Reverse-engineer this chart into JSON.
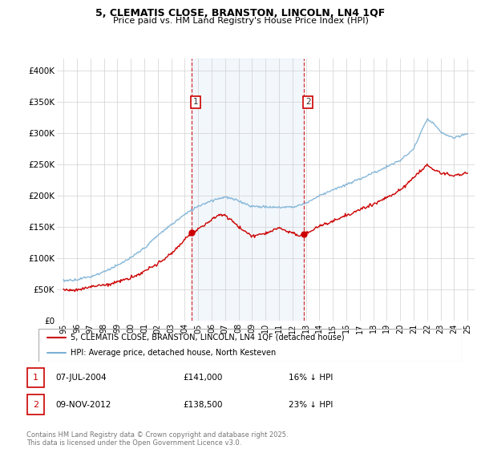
{
  "title": "5, CLEMATIS CLOSE, BRANSTON, LINCOLN, LN4 1QF",
  "subtitle": "Price paid vs. HM Land Registry's House Price Index (HPI)",
  "hpi_label": "HPI: Average price, detached house, North Kesteven",
  "price_label": "5, CLEMATIS CLOSE, BRANSTON, LINCOLN, LN4 1QF (detached house)",
  "annotation1": {
    "num": "1",
    "date": "07-JUL-2004",
    "price": "£141,000",
    "pct": "16% ↓ HPI"
  },
  "annotation2": {
    "num": "2",
    "date": "09-NOV-2012",
    "price": "£138,500",
    "pct": "23% ↓ HPI"
  },
  "footer": "Contains HM Land Registry data © Crown copyright and database right 2025.\nThis data is licensed under the Open Government Licence v3.0.",
  "price_color": "#cc0000",
  "hpi_color": "#7ab0d4",
  "marker1_x": 2004.52,
  "marker1_y": 141000,
  "marker2_x": 2012.86,
  "marker2_y": 138500,
  "vline1_x": 2004.52,
  "vline2_x": 2012.86,
  "ylim": [
    0,
    420000
  ],
  "xlim": [
    1994.5,
    2025.5
  ],
  "yticks": [
    0,
    50000,
    100000,
    150000,
    200000,
    250000,
    300000,
    350000,
    400000
  ],
  "ytick_labels": [
    "£0",
    "£50K",
    "£100K",
    "£150K",
    "£200K",
    "£250K",
    "£300K",
    "£350K",
    "£400K"
  ],
  "xticks": [
    1995,
    1996,
    1997,
    1998,
    1999,
    2000,
    2001,
    2002,
    2003,
    2004,
    2005,
    2006,
    2007,
    2008,
    2009,
    2010,
    2011,
    2012,
    2013,
    2014,
    2015,
    2016,
    2017,
    2018,
    2019,
    2020,
    2021,
    2022,
    2023,
    2024,
    2025
  ],
  "fig_width": 6.0,
  "fig_height": 5.6,
  "dpi": 100
}
